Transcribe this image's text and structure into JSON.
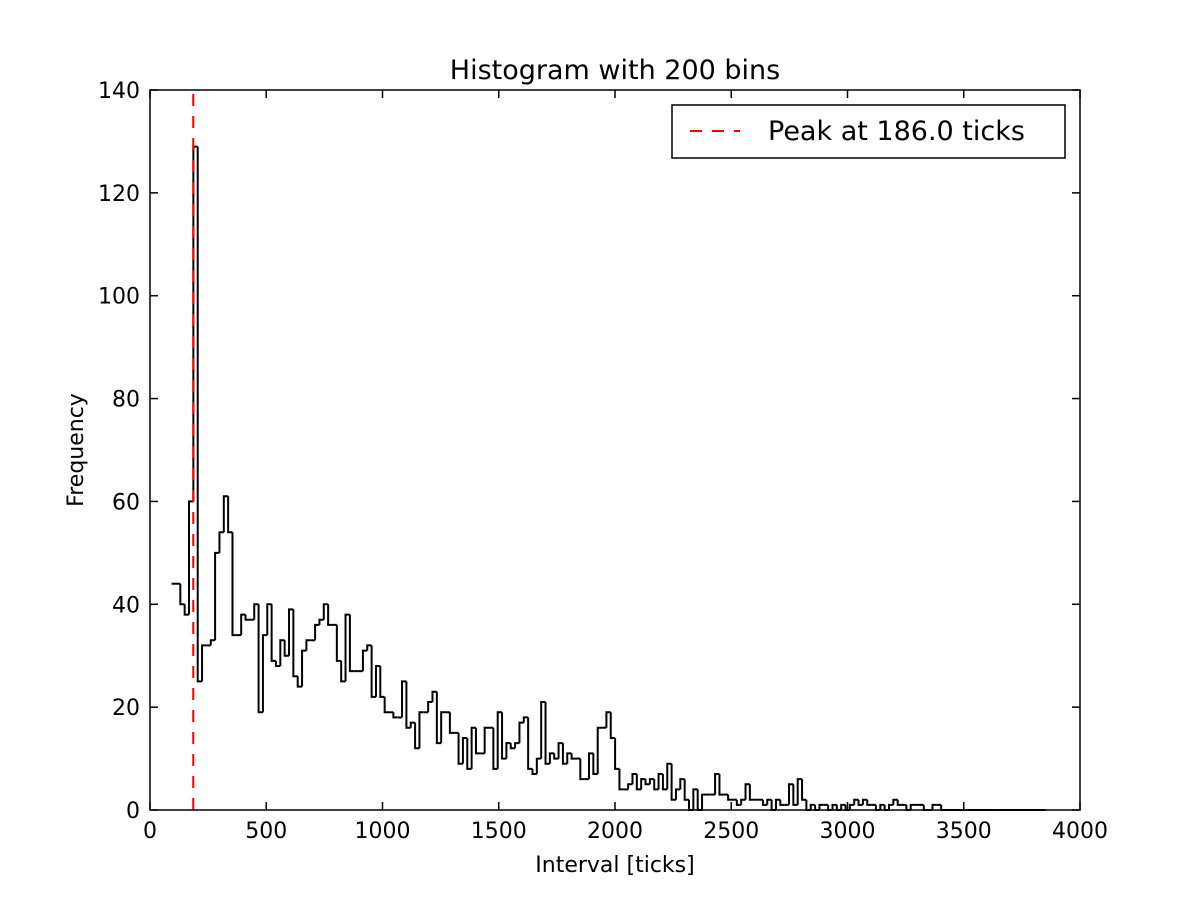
{
  "chart_data": {
    "type": "histogram",
    "title": "Histogram with 200 bins",
    "xlabel": "Interval [ticks]",
    "ylabel": "Frequency",
    "xlim": [
      0,
      4000
    ],
    "ylim": [
      0,
      140
    ],
    "xticks": [
      0,
      500,
      1000,
      1500,
      2000,
      2500,
      3000,
      3500,
      4000
    ],
    "yticks": [
      0,
      20,
      40,
      60,
      80,
      100,
      120,
      140
    ],
    "grid": false,
    "legend_position": "upper right",
    "bin_start": 93,
    "bin_width": 18.7,
    "counts": [
      44,
      44,
      40,
      38,
      60,
      129,
      25,
      32,
      32,
      33,
      50,
      54,
      61,
      54,
      34,
      34,
      38,
      37,
      37,
      40,
      19,
      34,
      40,
      29,
      28,
      33,
      30,
      39,
      26,
      24,
      31,
      33,
      33,
      36,
      37,
      40,
      36,
      36,
      29,
      25,
      38,
      27,
      27,
      27,
      31,
      32,
      22,
      28,
      22,
      19,
      19,
      18,
      18,
      25,
      16,
      17,
      12,
      19,
      19,
      21,
      23,
      13,
      19,
      19,
      15,
      15,
      9,
      14,
      8,
      16,
      11,
      11,
      16,
      16,
      8,
      19,
      10,
      13,
      12,
      13,
      17,
      18,
      8,
      7,
      10,
      21,
      9,
      11,
      10,
      13,
      9,
      11,
      10,
      10,
      6,
      6,
      11,
      7,
      16,
      16,
      19,
      14,
      8,
      4,
      4,
      5,
      7,
      4,
      6,
      5,
      6,
      4,
      7,
      4,
      9,
      2,
      4,
      6,
      2,
      0,
      4,
      0,
      3,
      3,
      3,
      7,
      3,
      3,
      2,
      2,
      1,
      2,
      5,
      2,
      2,
      2,
      1,
      2,
      0,
      2,
      1,
      1,
      5,
      1,
      6,
      2,
      0,
      1,
      0,
      1,
      1,
      0,
      1,
      0,
      1,
      0,
      1,
      2,
      1,
      2,
      1,
      1,
      0,
      1,
      0,
      1,
      2,
      1,
      1,
      0,
      1,
      1,
      1,
      0,
      0,
      1,
      1,
      0,
      0,
      0,
      0,
      0,
      0,
      0,
      0,
      0,
      0,
      0,
      0,
      0,
      0,
      0,
      0,
      0,
      0,
      0,
      0,
      0,
      0,
      0,
      0
    ],
    "marker": {
      "x": 186.0,
      "style": "dashed",
      "color": "#ff0000"
    },
    "series": [
      {
        "name": "Peak at 186.0 ticks",
        "kind": "vline",
        "color": "#ff0000"
      }
    ],
    "line_color": "#000000"
  }
}
